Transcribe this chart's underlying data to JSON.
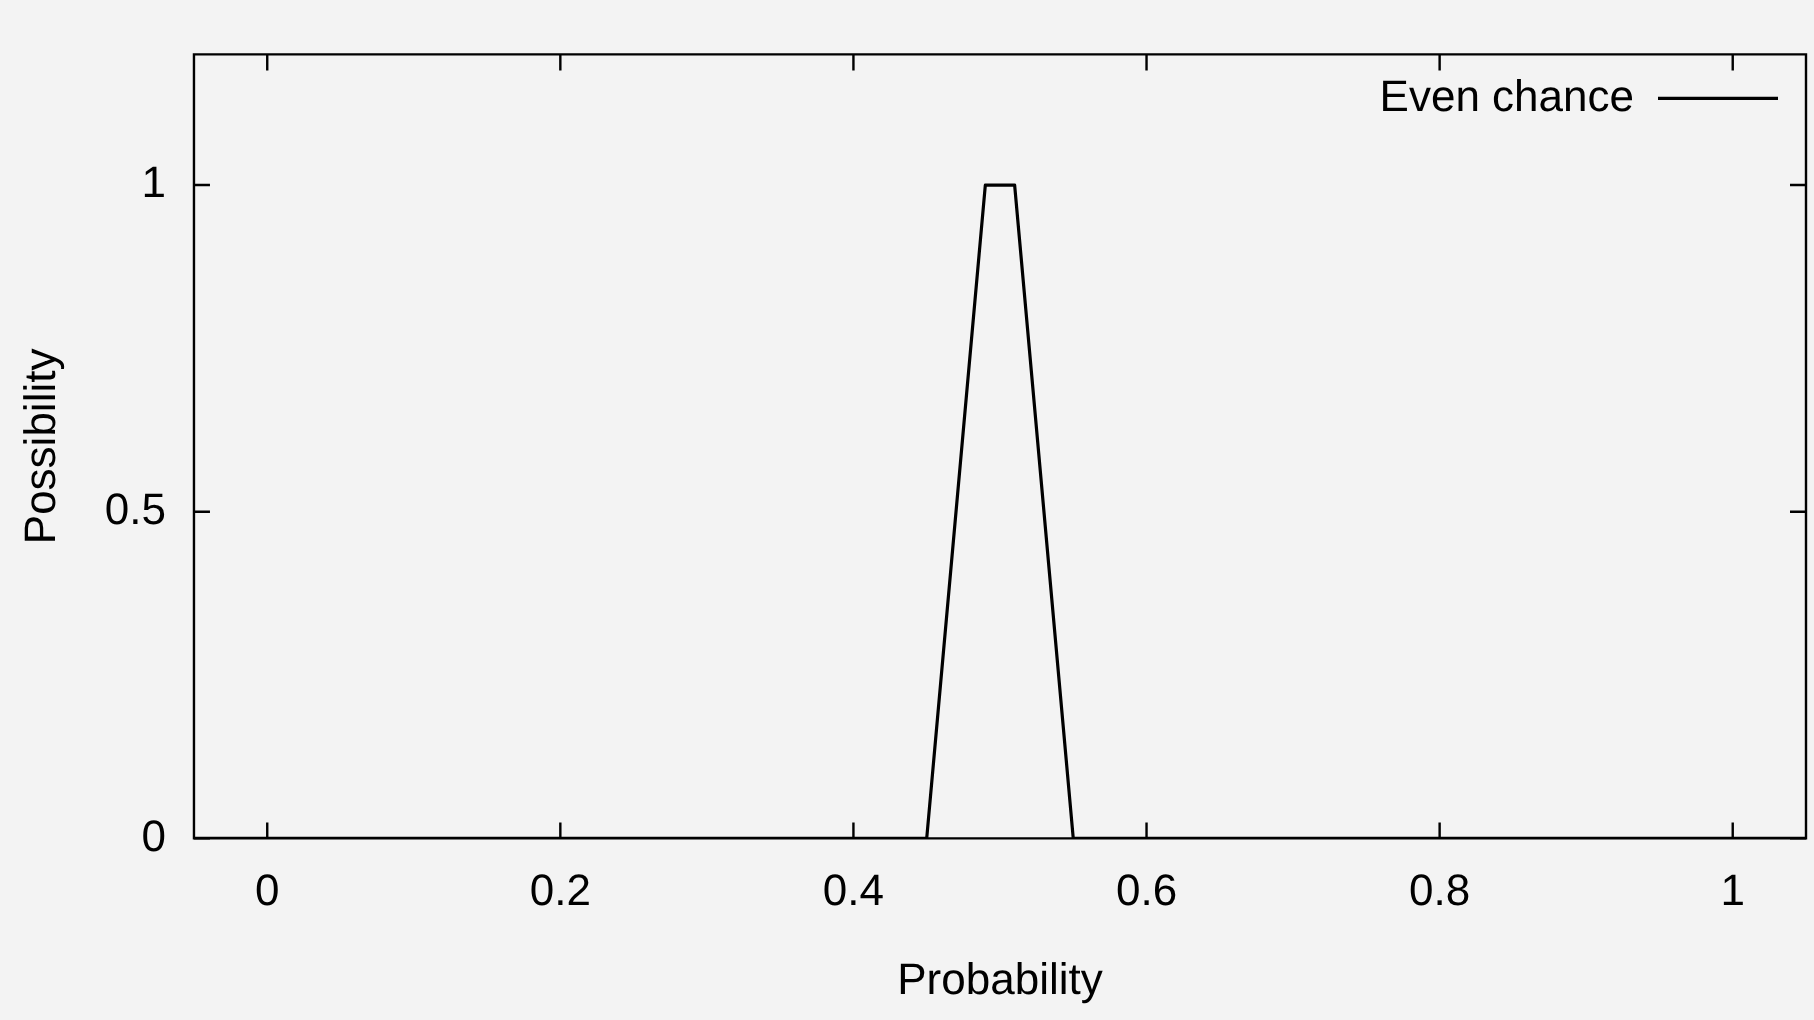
{
  "chart_data": {
    "type": "line",
    "xlabel": "Probability",
    "ylabel": "Possibility",
    "xlim": [
      -0.05,
      1.05
    ],
    "ylim": [
      0,
      1.2
    ],
    "xticks": [
      0,
      0.2,
      0.4,
      0.6,
      0.8,
      1
    ],
    "yticks": [
      0,
      0.5,
      1
    ],
    "grid": false,
    "legend": "top right",
    "marker": "none",
    "line_style": "solid",
    "series": [
      {
        "name": "Even chance",
        "color": "#000000",
        "x": [
          -0.05,
          0.45,
          0.49,
          0.51,
          0.55,
          1.05
        ],
        "values": [
          0,
          0,
          1,
          1,
          0,
          0
        ]
      }
    ]
  }
}
